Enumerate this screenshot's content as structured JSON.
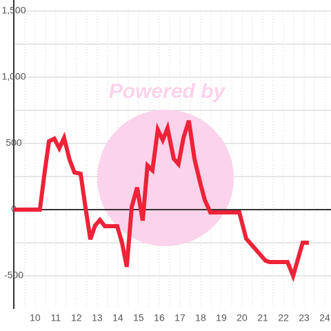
{
  "chart_data": {
    "type": "line",
    "watermark": "Powered by",
    "x": [
      8.97,
      10.23,
      10.47,
      10.67,
      10.93,
      11.17,
      11.4,
      11.67,
      11.9,
      12.2,
      12.43,
      12.67,
      12.9,
      13.13,
      13.37,
      13.97,
      14.2,
      14.43,
      14.67,
      14.93,
      15.2,
      15.43,
      15.67,
      15.93,
      16.17,
      16.4,
      16.7,
      16.93,
      17.17,
      17.43,
      17.7,
      17.97,
      18.2,
      18.47,
      19.87,
      20.2,
      20.67,
      21.13,
      21.33,
      22.2,
      22.47,
      22.93,
      23.23
    ],
    "series": [
      {
        "color": "#ee2238",
        "values": [
          0,
          0,
          292,
          516,
          536,
          464,
          542,
          375,
          281,
          271,
          21,
          -224,
          -120,
          -78,
          -125,
          -125,
          -250,
          -432,
          21,
          167,
          -83,
          333,
          297,
          604,
          526,
          615,
          385,
          344,
          542,
          672,
          385,
          208,
          73,
          -21,
          -21,
          -219,
          -302,
          -385,
          -396,
          -396,
          -500,
          -250,
          -250
        ]
      }
    ],
    "xlim": [
      8.97,
      24.3
    ],
    "xticks": [
      10,
      11,
      12,
      13,
      14,
      15,
      16,
      17,
      18,
      19,
      20,
      21,
      22,
      23,
      24
    ],
    "xminorticks": [
      9.5,
      10.5,
      11.5,
      12.5,
      13.5,
      14.5,
      15.5,
      16.5,
      17.5,
      18.5,
      19.5,
      20.5,
      21.5,
      22.5,
      23.5
    ],
    "ylim": [
      -750,
      1500
    ],
    "yticks": [
      {
        "value": -500,
        "label": "-500"
      },
      0,
      500,
      {
        "value": 1000,
        "label": "1,000"
      },
      {
        "value": 1500,
        "label": "1,500"
      }
    ],
    "yminorticks": [
      -250,
      250,
      750,
      1250
    ],
    "grid": true
  }
}
